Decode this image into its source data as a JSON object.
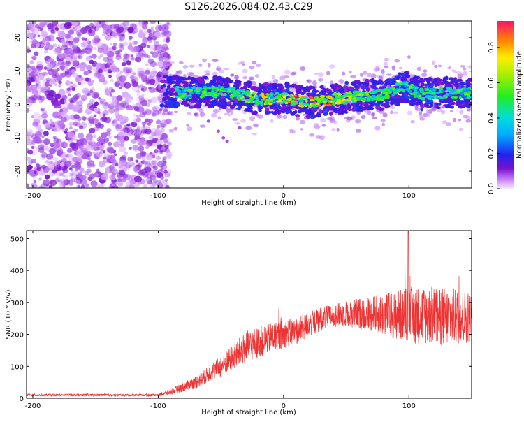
{
  "title": "S126.2026.084.02.43.C29",
  "chart_data": [
    {
      "type": "heatmap",
      "xlabel": "Height of straight line (km)",
      "ylabel": "Frequency (Hz)",
      "xlim": [
        -205,
        150
      ],
      "ylim": [
        -25,
        25
      ],
      "xticks": [
        -200,
        -100,
        0,
        100
      ],
      "yticks": [
        -20,
        -10,
        0,
        10,
        20
      ],
      "colorbar": {
        "label": "Normalized spectral amplitude",
        "range": [
          0,
          0.95
        ],
        "ticks": [
          0.0,
          0.2,
          0.4,
          0.6,
          0.8
        ],
        "tick_labels": [
          "0.0",
          "0.2",
          "0.4",
          "0.6",
          "0.8"
        ]
      },
      "noise_region": {
        "x_from": -205,
        "x_to": -97,
        "amplitude": [
          0.02,
          0.12
        ]
      },
      "signal_band_center": [
        {
          "x": -97,
          "y": 4.0
        },
        {
          "x": -80,
          "y": 3.5
        },
        {
          "x": -60,
          "y": 3.8
        },
        {
          "x": -40,
          "y": 3.5
        },
        {
          "x": -20,
          "y": 1.5
        },
        {
          "x": 0,
          "y": 2.0
        },
        {
          "x": 20,
          "y": 0.5
        },
        {
          "x": 40,
          "y": 1.5
        },
        {
          "x": 60,
          "y": 2.5
        },
        {
          "x": 80,
          "y": 3.0
        },
        {
          "x": 97,
          "y": 5.5
        },
        {
          "x": 110,
          "y": 3.0
        },
        {
          "x": 130,
          "y": 3.5
        },
        {
          "x": 150,
          "y": 3.5
        }
      ]
    },
    {
      "type": "line",
      "xlabel": "Height of straight line (km)",
      "ylabel": "SNR (10 * v/v)",
      "xlim": [
        -205,
        150
      ],
      "ylim": [
        0,
        525
      ],
      "xticks": [
        -200,
        -100,
        0,
        100
      ],
      "yticks": [
        0,
        100,
        200,
        300,
        400,
        500
      ],
      "color": "#ee3333",
      "envelope": [
        {
          "x": -205,
          "y": 10
        },
        {
          "x": -100,
          "y": 10
        },
        {
          "x": -90,
          "y": 20
        },
        {
          "x": -70,
          "y": 50
        },
        {
          "x": -50,
          "y": 100
        },
        {
          "x": -30,
          "y": 160
        },
        {
          "x": -10,
          "y": 190
        },
        {
          "x": 10,
          "y": 210
        },
        {
          "x": 30,
          "y": 250
        },
        {
          "x": 50,
          "y": 265
        },
        {
          "x": 70,
          "y": 265
        },
        {
          "x": 90,
          "y": 260
        },
        {
          "x": 110,
          "y": 260
        },
        {
          "x": 130,
          "y": 255
        },
        {
          "x": 150,
          "y": 255
        }
      ],
      "noise_amplitude": [
        {
          "x": -205,
          "y": 4
        },
        {
          "x": -100,
          "y": 4
        },
        {
          "x": -60,
          "y": 25
        },
        {
          "x": -30,
          "y": 50
        },
        {
          "x": 0,
          "y": 45
        },
        {
          "x": 40,
          "y": 35
        },
        {
          "x": 70,
          "y": 55
        },
        {
          "x": 100,
          "y": 90
        },
        {
          "x": 130,
          "y": 95
        },
        {
          "x": 150,
          "y": 80
        }
      ]
    }
  ]
}
